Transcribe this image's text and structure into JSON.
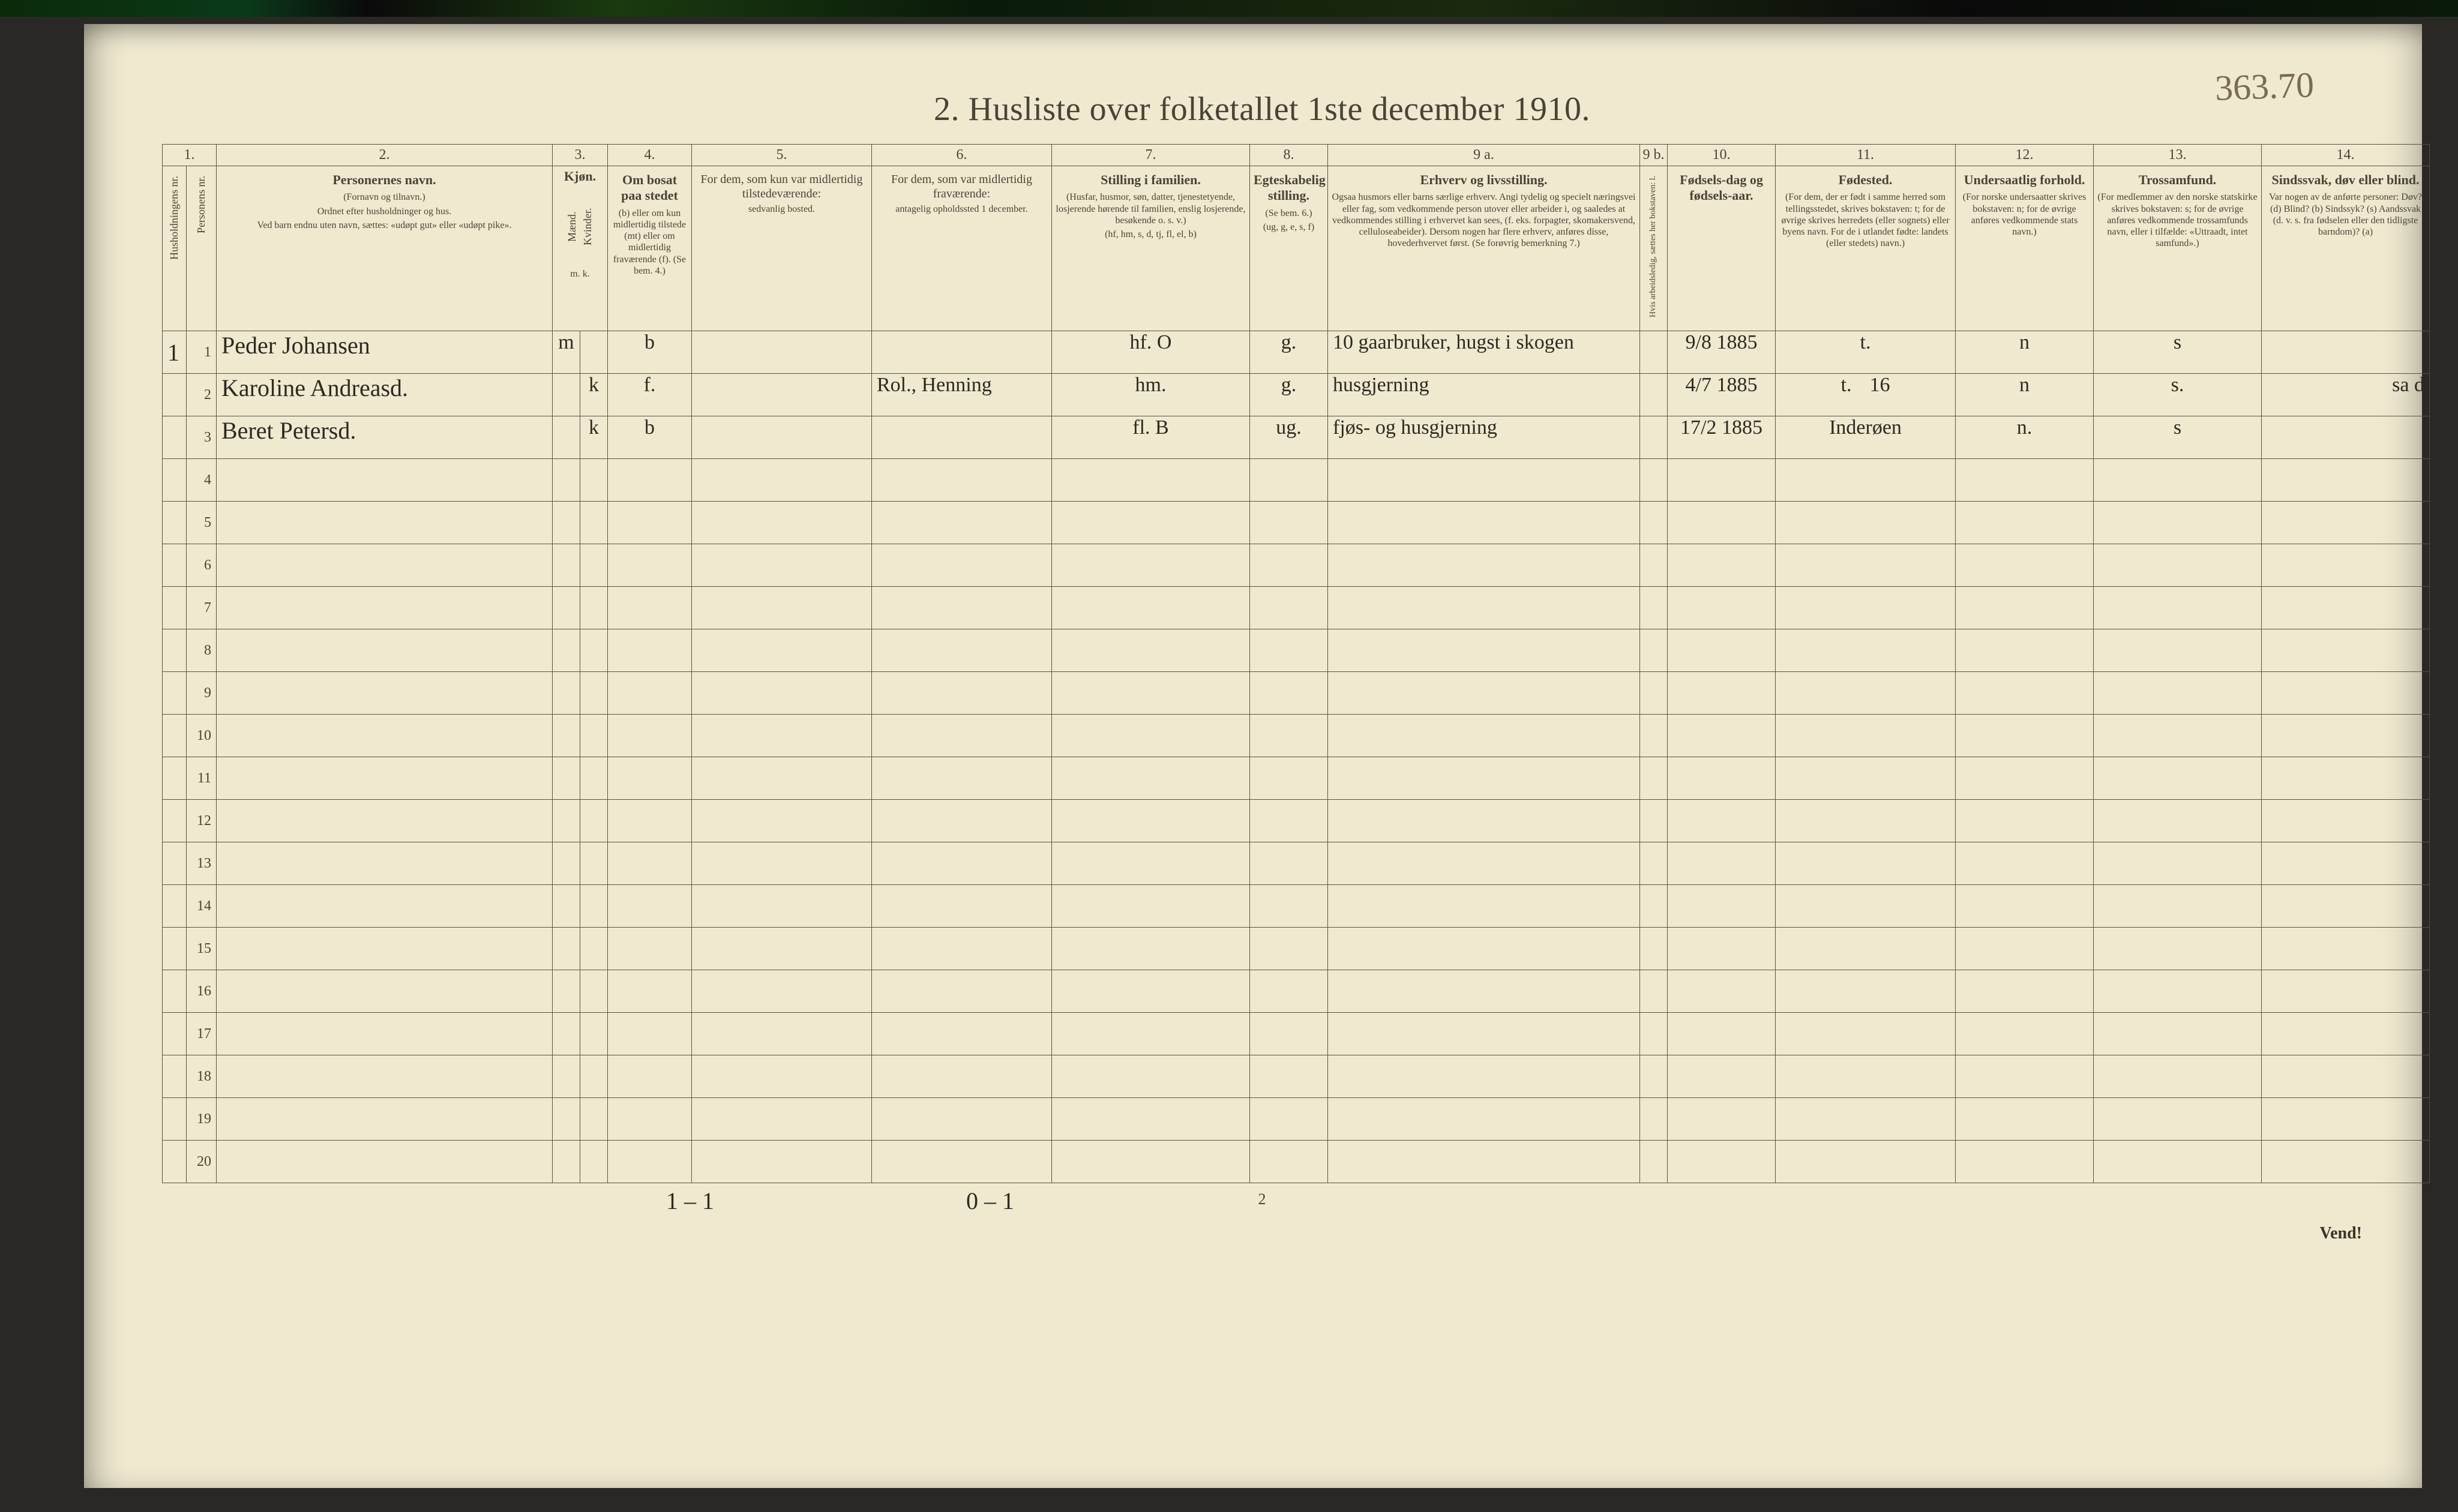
{
  "document": {
    "title": "2.   Husliste over folketallet 1ste december 1910.",
    "sheet_number_handwritten": "363.70",
    "page_number": "2",
    "turn_text": "Vend!",
    "footer_hand_left": "1 – 1",
    "footer_hand_mid": "0 – 1",
    "background_color": "#efe9d0",
    "ink_color": "#4a4436",
    "rule_color": "#5a5242",
    "hand_color": "#2c2a20",
    "fontsize_title": 56,
    "fontsize_header": 20,
    "fontsize_body": 32
  },
  "columns": {
    "nums": [
      "1.",
      "",
      "2.",
      "3.",
      "",
      "4.",
      "5.",
      "6.",
      "7.",
      "8.",
      "9 a.",
      "9 b.",
      "10.",
      "11.",
      "12.",
      "13.",
      "14."
    ],
    "c1_label": "Husholdningens nr.",
    "c1b_label": "Personens nr.",
    "c2": {
      "title": "Personernes navn.",
      "sub1": "(Fornavn og tilnavn.)",
      "sub2": "Ordnet efter husholdninger og hus.",
      "sub3": "Ved barn endnu uten navn, sættes: «udøpt gut» eller «udøpt pike»."
    },
    "c3": {
      "title": "Kjøn.",
      "m": "Mænd.",
      "k": "Kvinder.",
      "foot": "m.  k."
    },
    "c4": {
      "title": "Om bosat paa stedet",
      "sub": "(b) eller om kun midlertidig tilstede (mt) eller om midlertidig fraværende (f). (Se bem. 4.)"
    },
    "c5": {
      "title": "For dem, som kun var midlertidig tilstedeværende:",
      "sub": "sedvanlig bosted."
    },
    "c6": {
      "title": "For dem, som var midlertidig fraværende:",
      "sub": "antagelig opholdssted 1 december."
    },
    "c7": {
      "title": "Stilling i familien.",
      "sub1": "(Husfar, husmor, søn, datter, tjenestetyende, losjerende hørende til familien, enslig losjerende, besøkende o. s. v.)",
      "sub2": "(hf, hm, s, d, tj, fl, el, b)"
    },
    "c8": {
      "title": "Egteskabelig stilling.",
      "sub": "(Se bem. 6.)",
      "sub2": "(ug, g, e, s, f)"
    },
    "c9a": {
      "title": "Erhverv og livsstilling.",
      "sub": "Ogsaa husmors eller barns særlige erhverv. Angi tydelig og specielt næringsvei eller fag, som vedkommende person utover eller arbeider i, og saaledes at vedkommendes stilling i erhvervet kan sees, (f. eks. forpagter, skomakersvend, celluloseabeider). Dersom nogen har flere erhverv, anføres disse, hovederhvervet først. (Se forøvrig bemerkning 7.)"
    },
    "c9b_label": "Hvis arbeidsledig, sættes her bokstaven: l.",
    "c10": {
      "title": "Fødsels-dag og fødsels-aar."
    },
    "c11": {
      "title": "Fødested.",
      "sub": "(For dem, der er født i samme herred som tellingsstedet, skrives bokstaven: t; for de øvrige skrives herredets (eller sognets) eller byens navn. For de i utlandet fødte: landets (eller stedets) navn.)"
    },
    "c12": {
      "title": "Undersaatlig forhold.",
      "sub": "(For norske undersaatter skrives bokstaven: n; for de øvrige anføres vedkommende stats navn.)"
    },
    "c13": {
      "title": "Trossamfund.",
      "sub": "(For medlemmer av den norske statskirke skrives bokstaven: s; for de øvrige anføres vedkommende trossamfunds navn, eller i tilfælde: «Uttraadt, intet samfund».)"
    },
    "c14": {
      "title": "Sindssvak, døv eller blind.",
      "sub": "Var nogen av de anførte personer: Døv?  (d)  Blind?  (b)  Sindssyk? (s)  Aandssvak (d. v. s. fra fødselen eller den tidligste barndom)?  (a)"
    }
  },
  "rows": [
    {
      "hh": "1",
      "pn": "1",
      "name": "Peder Johansen",
      "sex_m": "m",
      "sex_k": "",
      "status": "b",
      "temp_present": "",
      "temp_absent": "",
      "family": "hf.      O",
      "marital": "g.",
      "occupation": "10 gaarbruker, hugst i skogen",
      "birth": "9/8 1885",
      "birthplace": "t.",
      "nationality": "n",
      "faith": "s",
      "disability": ""
    },
    {
      "hh": "",
      "pn": "2",
      "name": "Karoline Andreasd.",
      "sex_m": "",
      "sex_k": "k",
      "status": "f.",
      "temp_present": "",
      "temp_absent": "Rol., Henning",
      "family": "hm.",
      "marital": "g.",
      "occupation": "husgjerning",
      "birth": "4/7 1885",
      "birthplace": "t.",
      "birthplace_extra": "16",
      "nationality": "n",
      "faith": "s.",
      "disability": "sa  d"
    },
    {
      "hh": "",
      "pn": "3",
      "name": "Beret Petersd.",
      "sex_m": "",
      "sex_k": "k",
      "status": "b",
      "temp_present": "",
      "temp_absent": "",
      "family": "fl.      B",
      "marital": "ug.",
      "occupation": "fjøs- og husgjerning",
      "birth": "17/2 1885",
      "birthplace": "Inderøen",
      "nationality": "n.",
      "faith": "s",
      "disability": ""
    }
  ],
  "total_body_rows": 20
}
